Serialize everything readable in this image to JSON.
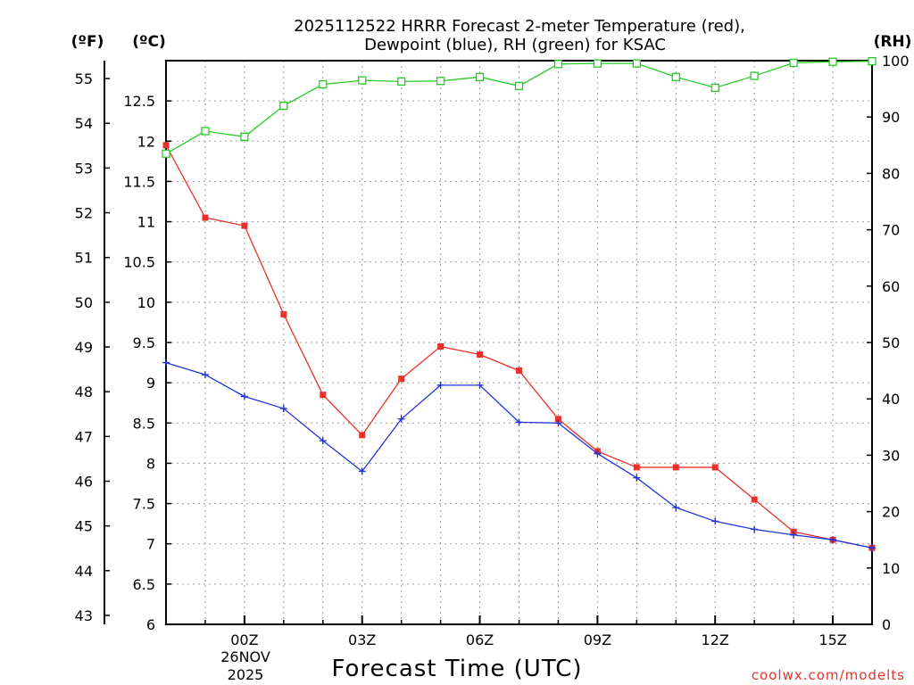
{
  "header": {
    "title_line1": "2025112522 HRRR Forecast 2-meter Temperature (red),",
    "title_line2": "Dewpoint (blue), RH (green) for KSAC",
    "unit_f": "(ºF)",
    "unit_c": "(ºC)",
    "unit_rh": "(RH)"
  },
  "footer": {
    "xlabel": "Forecast Time (UTC)",
    "credit": "coolwx.com/modelts",
    "date_line1": "26NOV",
    "date_line2": "2025"
  },
  "colors": {
    "temperature": "#e8322c",
    "dewpoint": "#2233dd",
    "rh": "#22cc22"
  },
  "chart_data": {
    "type": "line",
    "title": "2025112522 HRRR Forecast 2-meter Temperature (red), Dewpoint (blue), RH (green) for KSAC",
    "xlabel": "Forecast Time (UTC)",
    "x_hours": [
      -2,
      -1,
      0,
      1,
      2,
      3,
      4,
      5,
      6,
      7,
      8,
      9,
      10,
      11,
      12,
      13,
      14,
      15,
      16
    ],
    "x_range": [
      -2,
      16
    ],
    "x_ticks": [
      {
        "hour": 0,
        "label": "00Z"
      },
      {
        "hour": 3,
        "label": "03Z"
      },
      {
        "hour": 6,
        "label": "06Z"
      },
      {
        "hour": 9,
        "label": "09Z"
      },
      {
        "hour": 12,
        "label": "12Z"
      },
      {
        "hour": 15,
        "label": "15Z"
      }
    ],
    "ylim_c": [
      6,
      13
    ],
    "ylim_f": [
      42.8,
      55.4
    ],
    "ylim_rh": [
      0,
      100
    ],
    "yticks_c": [
      "6",
      "6.5",
      "7",
      "7.5",
      "8",
      "8.5",
      "9",
      "9.5",
      "10",
      "10.5",
      "11",
      "11.5",
      "12",
      "12.5"
    ],
    "yticks_f": [
      "43",
      "44",
      "45",
      "46",
      "47",
      "48",
      "49",
      "50",
      "51",
      "52",
      "53",
      "54",
      "55"
    ],
    "yticks_rh": [
      "0",
      "10",
      "20",
      "30",
      "40",
      "50",
      "60",
      "70",
      "80",
      "90",
      "100"
    ],
    "grid": true,
    "series": [
      {
        "name": "Temperature",
        "unit": "C",
        "marker": "filled-square",
        "values": [
          11.95,
          11.05,
          10.95,
          9.85,
          8.85,
          8.35,
          9.05,
          9.45,
          9.35,
          9.15,
          8.55,
          8.15,
          7.95,
          7.95,
          7.95,
          7.55,
          7.15,
          7.05,
          6.95
        ]
      },
      {
        "name": "Dewpoint",
        "unit": "C",
        "marker": "plus",
        "values": [
          9.25,
          9.1,
          8.83,
          8.68,
          8.28,
          7.9,
          8.55,
          8.97,
          8.97,
          8.51,
          8.5,
          8.12,
          7.82,
          7.45,
          7.28,
          7.18,
          7.11,
          7.05,
          6.95
        ]
      },
      {
        "name": "RH",
        "unit": "%",
        "marker": "open-square",
        "values": [
          83.5,
          87.5,
          86.5,
          92,
          95.8,
          96.5,
          96.3,
          96.4,
          97.1,
          95.5,
          99.4,
          99.5,
          99.5,
          97.1,
          95.2,
          97.3,
          99.6,
          99.8,
          99.9
        ]
      }
    ]
  }
}
